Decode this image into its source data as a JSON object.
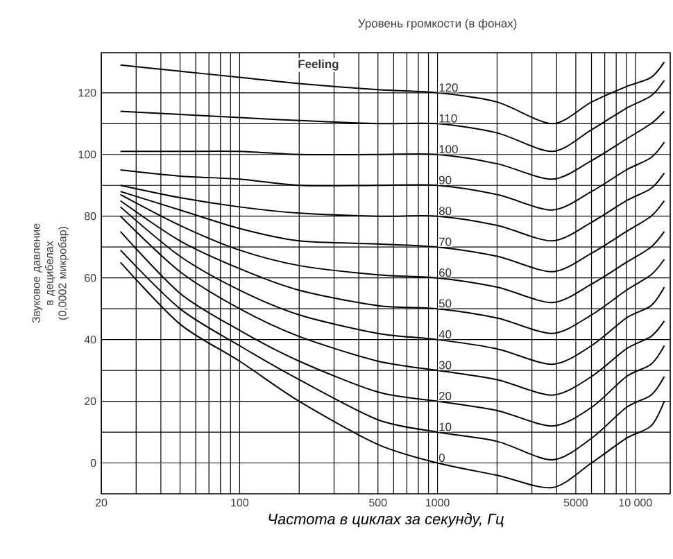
{
  "chart_data": {
    "type": "line",
    "title": "Уровень громкости (в фонах)",
    "xlabel": "Частота в циклах за секунду, Гц",
    "ylabel": "Звуковое давление в децибелах (0,0002 микробар)",
    "log": "x",
    "grid": true,
    "marker": "none",
    "line_style": "solid",
    "xlim": [
      20,
      15000
    ],
    "ylim": [
      -10,
      133
    ],
    "xticks": [
      20,
      {
        "value": 30,
        "label": null
      },
      {
        "value": 40,
        "label": null
      },
      {
        "value": 50,
        "label": null
      },
      {
        "value": 60,
        "label": null
      },
      {
        "value": 70,
        "label": null
      },
      {
        "value": 80,
        "label": null
      },
      {
        "value": 90,
        "label": null
      },
      100,
      {
        "value": 200,
        "label": null
      },
      {
        "value": 300,
        "label": null
      },
      {
        "value": 400,
        "label": null
      },
      500,
      {
        "value": 600,
        "label": null
      },
      {
        "value": 700,
        "label": null
      },
      {
        "value": 800,
        "label": null
      },
      {
        "value": 900,
        "label": null
      },
      1000,
      {
        "value": 2000,
        "label": null
      },
      {
        "value": 3000,
        "label": null
      },
      {
        "value": 4000,
        "label": null
      },
      5000,
      {
        "value": 6000,
        "label": null
      },
      {
        "value": 7000,
        "label": null
      },
      {
        "value": 8000,
        "label": null
      },
      {
        "value": 9000,
        "label": null
      },
      {
        "value": 10000,
        "label": "10 000"
      }
    ],
    "yticks": [
      0,
      {
        "value": 10,
        "label": null
      },
      20,
      {
        "value": 30,
        "label": null
      },
      40,
      {
        "value": 50,
        "label": null
      },
      60,
      {
        "value": 70,
        "label": null
      },
      80,
      {
        "value": 90,
        "label": null
      },
      100,
      {
        "value": 110,
        "label": null
      },
      120
    ],
    "x": [
      25,
      50,
      100,
      200,
      500,
      1000,
      2000,
      3800,
      6000,
      9000,
      12000,
      14000
    ],
    "series": [
      {
        "name": "0",
        "color": "#000000",
        "values": [
          65,
          45,
          33,
          20,
          6,
          0,
          -4,
          -8,
          0,
          8,
          12,
          20
        ]
      },
      {
        "name": "10",
        "color": "#000000",
        "values": [
          69,
          50,
          38,
          27,
          14,
          10,
          7,
          1,
          8,
          18,
          22,
          28
        ]
      },
      {
        "name": "20",
        "color": "#000000",
        "values": [
          75,
          55,
          43,
          33,
          23,
          20,
          17,
          12,
          18,
          28,
          32,
          38
        ]
      },
      {
        "name": "30",
        "color": "#000000",
        "values": [
          80,
          62,
          50,
          41,
          33,
          30,
          27,
          22,
          28,
          37,
          41,
          46
        ]
      },
      {
        "name": "40",
        "color": "#000000",
        "values": [
          83,
          67,
          56,
          48,
          42,
          40,
          37,
          32,
          38,
          47,
          51,
          57
        ]
      },
      {
        "name": "50",
        "color": "#000000",
        "values": [
          85,
          72,
          63,
          56,
          51,
          50,
          47,
          42,
          48,
          56,
          61,
          66
        ]
      },
      {
        "name": "60",
        "color": "#000000",
        "values": [
          87,
          77,
          69,
          64,
          61,
          60,
          57,
          52,
          58,
          65,
          70,
          75
        ]
      },
      {
        "name": "70",
        "color": "#000000",
        "values": [
          88,
          82,
          76,
          72,
          71,
          70,
          67,
          62,
          68,
          75,
          80,
          85
        ]
      },
      {
        "name": "80",
        "color": "#000000",
        "values": [
          90,
          86,
          83,
          81,
          80,
          80,
          77,
          72,
          78,
          85,
          89,
          94
        ]
      },
      {
        "name": "90",
        "color": "#000000",
        "values": [
          95,
          93,
          92,
          90,
          90,
          90,
          87,
          82,
          88,
          95,
          99,
          104
        ]
      },
      {
        "name": "100",
        "color": "#000000",
        "values": [
          101,
          101,
          101,
          100,
          100,
          100,
          97,
          92,
          98,
          105,
          110,
          114
        ]
      },
      {
        "name": "110",
        "color": "#000000",
        "values": [
          114,
          113,
          112,
          111,
          110,
          110,
          107,
          101,
          108,
          115,
          119,
          124
        ]
      },
      {
        "name": "120",
        "color": "#000000",
        "values": [
          129,
          127,
          125,
          123,
          121,
          120,
          117,
          110,
          117,
          122,
          125,
          130
        ]
      }
    ],
    "annotations": [
      {
        "text": "Feeling",
        "x": 250,
        "y": 129
      }
    ]
  }
}
